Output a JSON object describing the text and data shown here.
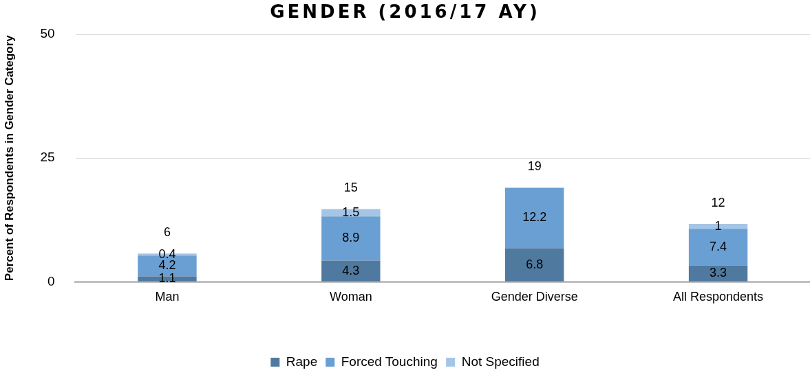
{
  "chart_data": {
    "type": "bar",
    "title": "GENDER (2016/17 AY)",
    "ylabel": "Percent of Respondents in Gender Category",
    "categories": [
      "Man",
      "Woman",
      "Gender Diverse",
      "All Respondents"
    ],
    "stacked": true,
    "series": [
      {
        "name": "Rape",
        "color": "#50799f",
        "values": [
          1.1,
          4.3,
          6.8,
          3.3
        ]
      },
      {
        "name": "Forced Touching",
        "color": "#6a9fd3",
        "values": [
          4.2,
          8.9,
          12.2,
          7.4
        ]
      },
      {
        "name": "Not Specified",
        "color": "#a5c5e6",
        "values": [
          0.4,
          1.5,
          null,
          1
        ]
      }
    ],
    "totals": [
      "6",
      "15",
      "19",
      "12"
    ],
    "data_labels": true,
    "ylim": [
      0,
      50
    ],
    "yticks": [
      0,
      25,
      50
    ],
    "grid": "y",
    "legend": "bottom"
  }
}
